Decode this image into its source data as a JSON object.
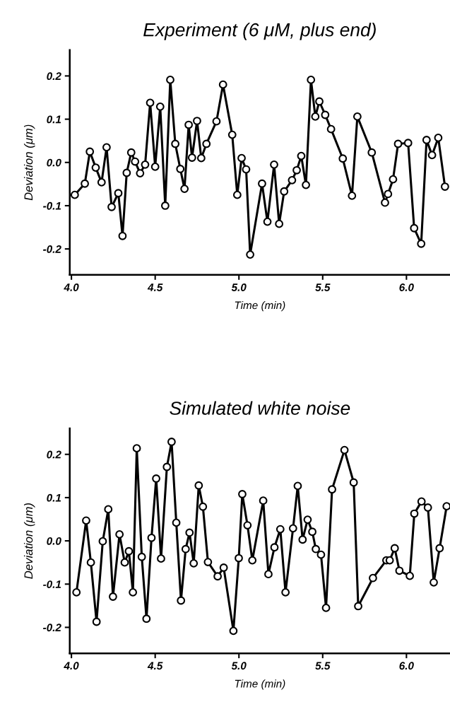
{
  "chart_data": [
    {
      "type": "line",
      "title": "Experiment (6 μM, plus end)",
      "xlabel": "Time (min)",
      "ylabel": "Deviation (μm)",
      "marker": "circle",
      "line_style": "solid",
      "grid": false,
      "legend": false,
      "xlim": [
        3.99,
        6.26
      ],
      "xticks": [
        {
          "value": 4.0,
          "label": "4.0"
        },
        {
          "value": 4.5,
          "label": "4.5"
        },
        {
          "value": 5.0,
          "label": "5.0"
        },
        {
          "value": 5.5,
          "label": "5.5"
        },
        {
          "value": 6.0,
          "label": "6.0"
        }
      ],
      "ylim": [
        -0.26,
        0.26
      ],
      "yticks": [
        {
          "value": -0.2,
          "label": "-0.2"
        },
        {
          "value": -0.1,
          "label": "-0.1"
        },
        {
          "value": 0.0,
          "label": "0.0"
        },
        {
          "value": 0.1,
          "label": "0.1"
        },
        {
          "value": 0.2,
          "label": "0.2"
        }
      ],
      "series": [
        {
          "color": "#000000",
          "x": [
            4.02,
            4.08,
            4.11,
            4.145,
            4.18,
            4.21,
            4.24,
            4.28,
            4.305,
            4.33,
            4.357,
            4.38,
            4.41,
            4.44,
            4.47,
            4.5,
            4.53,
            4.56,
            4.59,
            4.62,
            4.65,
            4.675,
            4.7,
            4.72,
            4.75,
            4.775,
            4.806,
            4.866,
            4.905,
            4.96,
            4.99,
            5.016,
            5.043,
            5.067,
            5.138,
            5.17,
            5.21,
            5.24,
            5.27,
            5.317,
            5.345,
            5.372,
            5.4,
            5.43,
            5.456,
            5.48,
            5.515,
            5.55,
            5.62,
            5.675,
            5.707,
            5.793,
            5.872,
            5.89,
            5.92,
            5.95,
            6.01,
            6.046,
            6.088,
            6.12,
            6.153,
            6.19,
            6.23
          ],
          "values": [
            -0.075,
            -0.049,
            0.025,
            -0.012,
            -0.046,
            0.035,
            -0.103,
            -0.071,
            -0.17,
            -0.024,
            0.023,
            0.002,
            -0.025,
            -0.005,
            0.138,
            -0.01,
            0.129,
            -0.1,
            0.191,
            0.043,
            -0.015,
            -0.061,
            0.087,
            0.011,
            0.096,
            0.01,
            0.043,
            0.095,
            0.18,
            0.064,
            -0.075,
            0.01,
            -0.016,
            -0.213,
            -0.049,
            -0.137,
            -0.005,
            -0.142,
            -0.067,
            -0.041,
            -0.018,
            0.015,
            -0.052,
            0.191,
            0.106,
            0.141,
            0.11,
            0.077,
            0.009,
            -0.077,
            0.106,
            0.023,
            -0.093,
            -0.073,
            -0.039,
            0.043,
            0.045,
            -0.152,
            -0.188,
            0.052,
            0.017,
            0.057,
            -0.056
          ]
        }
      ]
    },
    {
      "type": "line",
      "title": "Simulated white noise",
      "xlabel": "Time (min)",
      "ylabel": "Deviation (μm)",
      "marker": "circle",
      "line_style": "solid",
      "grid": false,
      "legend": false,
      "xlim": [
        3.99,
        6.26
      ],
      "xticks": [
        {
          "value": 4.0,
          "label": "4.0"
        },
        {
          "value": 4.5,
          "label": "4.5"
        },
        {
          "value": 5.0,
          "label": "5.0"
        },
        {
          "value": 5.5,
          "label": "5.5"
        },
        {
          "value": 6.0,
          "label": "6.0"
        }
      ],
      "ylim": [
        -0.26,
        0.26
      ],
      "yticks": [
        {
          "value": -0.2,
          "label": "-0.2"
        },
        {
          "value": -0.1,
          "label": "-0.1"
        },
        {
          "value": 0.0,
          "label": "0.0"
        },
        {
          "value": 0.1,
          "label": "0.1"
        },
        {
          "value": 0.2,
          "label": "0.2"
        }
      ],
      "series": [
        {
          "color": "#000000",
          "x": [
            4.03,
            4.088,
            4.116,
            4.15,
            4.187,
            4.22,
            4.248,
            4.287,
            4.318,
            4.343,
            4.367,
            4.39,
            4.42,
            4.448,
            4.478,
            4.506,
            4.535,
            4.57,
            4.598,
            4.626,
            4.654,
            4.682,
            4.705,
            4.73,
            4.76,
            4.785,
            4.815,
            4.873,
            4.909,
            4.967,
            4.999,
            5.02,
            5.051,
            5.08,
            5.145,
            5.176,
            5.212,
            5.247,
            5.278,
            5.323,
            5.351,
            5.38,
            5.41,
            5.438,
            5.459,
            5.49,
            5.52,
            5.556,
            5.63,
            5.685,
            5.712,
            5.8,
            5.88,
            5.9,
            5.93,
            5.958,
            6.02,
            6.047,
            6.09,
            6.128,
            6.163,
            6.198,
            6.24
          ],
          "values": [
            -0.119,
            0.047,
            -0.05,
            -0.187,
            -0.001,
            0.073,
            -0.129,
            0.015,
            -0.05,
            -0.024,
            -0.119,
            0.214,
            -0.037,
            -0.18,
            0.007,
            0.144,
            -0.041,
            0.171,
            0.229,
            0.042,
            -0.138,
            -0.019,
            0.019,
            -0.052,
            0.128,
            0.079,
            -0.049,
            -0.082,
            -0.062,
            -0.208,
            -0.04,
            0.108,
            0.036,
            -0.045,
            0.093,
            -0.077,
            -0.015,
            0.027,
            -0.119,
            0.029,
            0.127,
            0.003,
            0.049,
            0.021,
            -0.019,
            -0.032,
            -0.155,
            0.119,
            0.21,
            0.135,
            -0.151,
            -0.086,
            -0.045,
            -0.045,
            -0.017,
            -0.069,
            -0.081,
            0.063,
            0.091,
            0.077,
            -0.096,
            -0.017,
            0.08
          ]
        }
      ]
    }
  ]
}
